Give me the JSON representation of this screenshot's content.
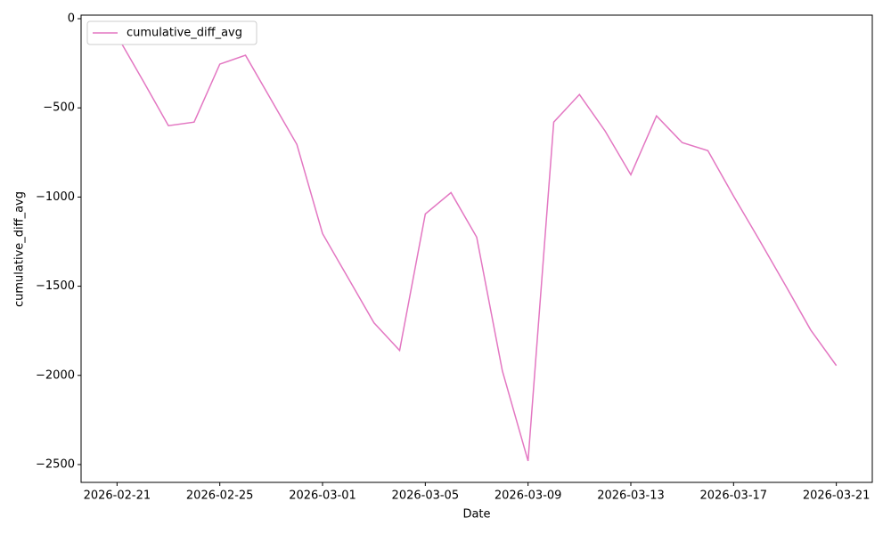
{
  "chart_data": {
    "type": "line",
    "xlabel": "Date",
    "ylabel": "cumulative_diff_avg",
    "x": [
      "2026-02-21",
      "2026-02-22",
      "2026-02-23",
      "2026-02-24",
      "2026-02-25",
      "2026-02-26",
      "2026-02-27",
      "2026-02-28",
      "2026-03-01",
      "2026-03-02",
      "2026-03-03",
      "2026-03-04",
      "2026-03-05",
      "2026-03-06",
      "2026-03-07",
      "2026-03-08",
      "2026-03-09",
      "2026-03-10",
      "2026-03-11",
      "2026-03-12",
      "2026-03-13",
      "2026-03-14",
      "2026-03-15",
      "2026-03-16",
      "2026-03-17",
      "2026-03-18",
      "2026-03-19",
      "2026-03-20",
      "2026-03-21"
    ],
    "series": [
      {
        "name": "cumulative_diff_avg",
        "color": "#e377c2",
        "values": [
          -95,
          -345,
          -600,
          -580,
          -255,
          -205,
          -455,
          -705,
          -1205,
          -1455,
          -1705,
          -1860,
          -1095,
          -975,
          -1225,
          -1975,
          -2480,
          -580,
          -425,
          -630,
          -875,
          -545,
          -695,
          -740,
          -995,
          -1240,
          -1490,
          -1745,
          -1945
        ]
      }
    ],
    "xlim": [
      "2026-02-19T14:24",
      "2026-03-22T09:36"
    ],
    "xticks": [
      "2026-02-21",
      "2026-02-25",
      "2026-03-01",
      "2026-03-05",
      "2026-03-09",
      "2026-03-13",
      "2026-03-17",
      "2026-03-21"
    ],
    "ylim": [
      -2600,
      20
    ],
    "yticks": [
      {
        "value": -2500,
        "label": "−2500"
      },
      {
        "value": -2000,
        "label": "−2000"
      },
      {
        "value": -1500,
        "label": "−1500"
      },
      {
        "value": -1000,
        "label": "−1000"
      },
      {
        "value": -500,
        "label": "−500"
      },
      0
    ],
    "grid": false,
    "legend": "upper left"
  }
}
